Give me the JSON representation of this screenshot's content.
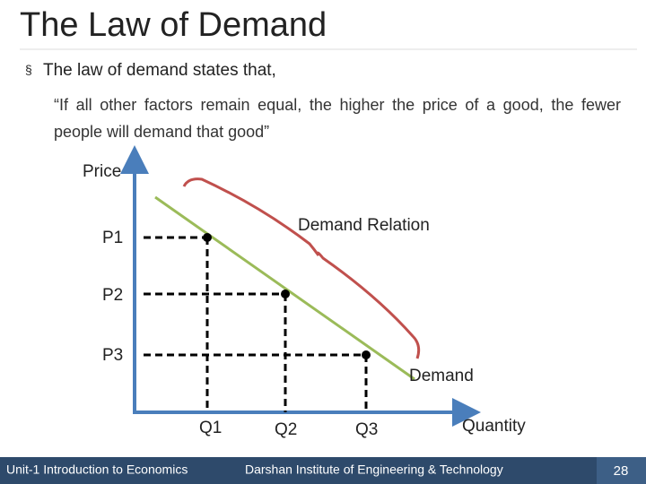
{
  "header": {
    "title": "The Law of Demand"
  },
  "body": {
    "bullet": "The law of demand states that,",
    "quote": "“If all other factors remain equal, the higher the price of a good, the fewer people will demand that good”"
  },
  "diagram": {
    "y_axis_label": "Price",
    "x_axis_label": "Quantity",
    "price_levels": [
      "P1",
      "P2",
      "P3"
    ],
    "quantity_levels": [
      "Q1",
      "Q2",
      "Q3"
    ],
    "curve_label": "Demand",
    "brace_label": "Demand Relation"
  },
  "footer": {
    "left": "Unit-1 Introduction to Economics",
    "center": "Darshan Institute of Engineering & Technology",
    "page": "28"
  }
}
